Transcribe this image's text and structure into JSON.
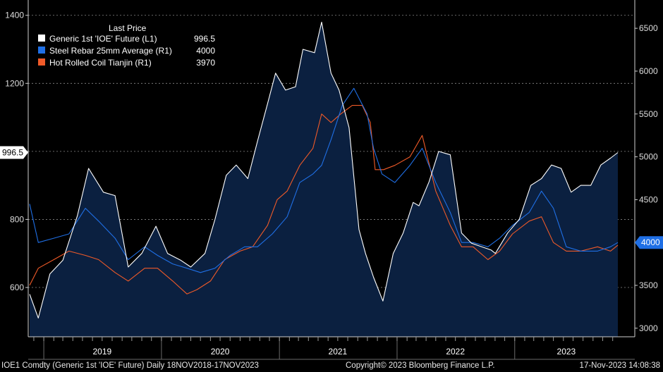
{
  "chart_data": {
    "type": "line",
    "legend": {
      "title": "Last Price",
      "placement": "top-left",
      "entries": [
        {
          "name": "Generic 1st 'IOE' Future  (L1)",
          "last": "996.5",
          "color": "#ffffff"
        },
        {
          "name": "Steel Rebar 25mm Average  (R1)",
          "last": "4000",
          "color": "#1f6fe5"
        },
        {
          "name": "Hot Rolled Coil Tianjin  (R1)",
          "last": "3970",
          "color": "#f05a28"
        }
      ]
    },
    "left_axis": {
      "min": 455,
      "max": 1445,
      "ticks": [
        600,
        800,
        1000,
        1200,
        1400
      ],
      "labels": [
        "600",
        "800",
        "",
        "1200",
        "1400"
      ],
      "last_label": "996.5"
    },
    "right_axis": {
      "min": 2900,
      "max": 6830,
      "ticks": [
        3000,
        3500,
        4000,
        4500,
        5000,
        5500,
        6000,
        6500
      ],
      "labels": [
        "3000",
        "3500",
        "",
        "4500",
        "5000",
        "5500",
        "6000",
        "6500"
      ],
      "last_label": "4000"
    },
    "x_range": [
      "2018-11-18",
      "2023-11-17"
    ],
    "year_labels": [
      "2019",
      "2020",
      "2021",
      "2022",
      "2023"
    ],
    "grid": "dashed horizontal",
    "series": [
      {
        "name": "Generic 1st 'IOE' Future  (L1)",
        "axis": "left",
        "x": [
          "2018-11-18",
          "2018-12-15",
          "2019-01-20",
          "2019-03-01",
          "2019-04-15",
          "2019-05-20",
          "2019-07-05",
          "2019-08-10",
          "2019-09-20",
          "2019-11-01",
          "2019-12-15",
          "2020-01-20",
          "2020-03-01",
          "2020-04-01",
          "2020-05-15",
          "2020-06-15",
          "2020-07-20",
          "2020-08-20",
          "2020-09-25",
          "2020-10-25",
          "2020-11-25",
          "2020-12-20",
          "2021-01-20",
          "2021-02-20",
          "2021-03-15",
          "2021-04-20",
          "2021-05-12",
          "2021-06-10",
          "2021-07-05",
          "2021-08-05",
          "2021-09-05",
          "2021-09-25",
          "2021-10-20",
          "2021-11-18",
          "2021-12-20",
          "2022-01-20",
          "2022-02-20",
          "2022-03-10",
          "2022-04-10",
          "2022-05-10",
          "2022-06-15",
          "2022-07-20",
          "2022-08-20",
          "2022-09-20",
          "2022-10-20",
          "2022-11-02",
          "2022-12-10",
          "2023-01-15",
          "2023-02-20",
          "2023-03-25",
          "2023-04-25",
          "2023-05-25",
          "2023-06-25",
          "2023-07-25",
          "2023-08-25",
          "2023-09-25",
          "2023-10-25",
          "2023-11-17"
        ],
        "values": [
          580,
          510,
          640,
          680,
          810,
          950,
          880,
          870,
          660,
          700,
          780,
          700,
          680,
          660,
          700,
          800,
          930,
          960,
          920,
          1030,
          1140,
          1230,
          1180,
          1190,
          1300,
          1290,
          1380,
          1230,
          1180,
          1070,
          770,
          700,
          630,
          560,
          700,
          760,
          850,
          840,
          910,
          1000,
          990,
          760,
          730,
          720,
          710,
          700,
          760,
          800,
          900,
          920,
          960,
          950,
          880,
          900,
          900,
          960,
          980,
          996.5
        ]
      },
      {
        "name": "Steel Rebar 25mm Average  (R1)",
        "axis": "right",
        "x": [
          "2018-11-18",
          "2018-12-15",
          "2019-02-01",
          "2019-03-20",
          "2019-05-10",
          "2019-06-20",
          "2019-08-10",
          "2019-09-20",
          "2019-11-10",
          "2019-12-20",
          "2020-02-05",
          "2020-03-20",
          "2020-05-01",
          "2020-06-15",
          "2020-08-01",
          "2020-09-15",
          "2020-10-25",
          "2020-12-10",
          "2021-01-25",
          "2021-03-05",
          "2021-04-15",
          "2021-05-12",
          "2021-06-10",
          "2021-07-15",
          "2021-08-20",
          "2021-09-30",
          "2021-10-20",
          "2021-11-15",
          "2021-12-25",
          "2022-02-10",
          "2022-03-20",
          "2022-05-01",
          "2022-06-15",
          "2022-07-20",
          "2022-08-25",
          "2022-10-10",
          "2022-11-15",
          "2022-12-25",
          "2023-02-15",
          "2023-03-25",
          "2023-05-01",
          "2023-06-10",
          "2023-07-25",
          "2023-09-15",
          "2023-10-25",
          "2023-11-17"
        ],
        "values": [
          4450,
          4000,
          4050,
          4100,
          4400,
          4250,
          4050,
          3800,
          3950,
          3850,
          3750,
          3700,
          3650,
          3700,
          3850,
          3950,
          3950,
          4100,
          4300,
          4700,
          4800,
          4900,
          5200,
          5600,
          5800,
          5500,
          5100,
          4800,
          4700,
          4900,
          5100,
          4700,
          4350,
          4000,
          4000,
          3950,
          4050,
          4200,
          4350,
          4600,
          4400,
          3950,
          3900,
          3900,
          3950,
          4000
        ]
      },
      {
        "name": "Hot Rolled Coil Tianjin  (R1)",
        "axis": "right",
        "x": [
          "2018-11-18",
          "2018-12-15",
          "2019-02-01",
          "2019-03-20",
          "2019-05-10",
          "2019-06-20",
          "2019-08-10",
          "2019-09-20",
          "2019-11-10",
          "2019-12-20",
          "2020-02-05",
          "2020-03-20",
          "2020-04-20",
          "2020-06-01",
          "2020-07-15",
          "2020-09-01",
          "2020-10-10",
          "2020-11-25",
          "2020-12-25",
          "2021-01-25",
          "2021-03-05",
          "2021-04-15",
          "2021-05-12",
          "2021-06-10",
          "2021-07-10",
          "2021-08-15",
          "2021-09-15",
          "2021-10-10",
          "2021-10-25",
          "2021-11-20",
          "2021-12-25",
          "2022-02-10",
          "2022-03-20",
          "2022-05-01",
          "2022-06-15",
          "2022-07-20",
          "2022-08-25",
          "2022-10-10",
          "2022-11-15",
          "2022-12-25",
          "2023-02-15",
          "2023-03-25",
          "2023-05-01",
          "2023-06-10",
          "2023-07-25",
          "2023-09-15",
          "2023-10-25",
          "2023-11-17"
        ],
        "values": [
          3500,
          3700,
          3800,
          3900,
          3850,
          3800,
          3650,
          3550,
          3700,
          3700,
          3550,
          3400,
          3450,
          3550,
          3800,
          3900,
          3950,
          4200,
          4500,
          4600,
          4900,
          5100,
          5500,
          5400,
          5500,
          5600,
          5600,
          5400,
          4850,
          4850,
          4900,
          5000,
          5250,
          4600,
          4200,
          3950,
          3950,
          3800,
          3900,
          4100,
          4250,
          4300,
          4000,
          3900,
          3900,
          3950,
          3900,
          3970
        ]
      }
    ]
  },
  "footer": {
    "left": "IOE1 Comdty (Generic 1st 'IOE' Future)  Daily 18NOV2018-17NOV2023",
    "center": "Copyright© 2023 Bloomberg Finance L.P.",
    "right": "17-Nov-2023 14:08:38"
  },
  "colors": {
    "background": "#000000",
    "area_fill": "#0b2040",
    "grid": "#8a8a8a"
  }
}
